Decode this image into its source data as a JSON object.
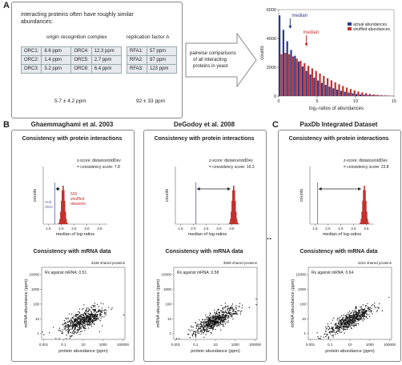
{
  "panel_a": {
    "letter": "A",
    "heading": "interacting proteins often have roughly similar abundances:",
    "orc_title": "origin recognition complex",
    "rfa_title": "replication factor A",
    "orc_rows": [
      {
        "l1": "ORC1:",
        "v1": "8.6 ppm",
        "l2": "ORC4:",
        "v2": "12.3 ppm"
      },
      {
        "l1": "ORC2:",
        "v1": "1.4 ppm",
        "l2": "ORC5:",
        "v2": "2.7 ppm"
      },
      {
        "l1": "ORC3:",
        "v1": "3.2 ppm",
        "l2": "ORC6:",
        "v2": "6.4 ppm"
      }
    ],
    "rfa_rows": [
      {
        "l": "RFA1:",
        "v": "57 ppm"
      },
      {
        "l": "RFA2:",
        "v": "97 ppm"
      },
      {
        "l": "RFA3:",
        "v": "123 ppm"
      }
    ],
    "orc_summary": "5.7 ± 4.2 ppm",
    "rfa_summary": "92 ± 33 ppm",
    "arrow_text": [
      "pairwise comparisons",
      "of all interacting",
      "proteins in yeast"
    ]
  },
  "panel_b_letter": "B",
  "panel_c_letter": "C",
  "ellipsis": "...",
  "colors": {
    "actual": "#2b3a8c",
    "shuffled": "#c0322f",
    "real_line": "#7a7ab8"
  },
  "chart_data": [
    {
      "type": "bar",
      "title": "",
      "legend": [
        "actual abundances",
        "shuffled abundances"
      ],
      "legend_position": "top-right",
      "xlabel": "log₂-ratios of abundances",
      "ylabel": "counts",
      "xlim": [
        0,
        15
      ],
      "ylim": [
        0,
        6000
      ],
      "xticks": [
        0,
        5,
        10,
        15
      ],
      "yticks": [
        0,
        2000,
        4000,
        6000
      ],
      "bin_width": 0.5,
      "series": [
        {
          "name": "actual abundances",
          "values": [
            5600,
            4600,
            3800,
            3200,
            2800,
            2400,
            2050,
            1750,
            1500,
            1280,
            1080,
            920,
            780,
            650,
            540,
            450,
            370,
            300,
            240,
            190,
            150,
            120,
            95,
            75,
            58,
            45,
            35,
            27,
            20,
            15
          ]
        },
        {
          "name": "shuffled abundances",
          "values": [
            2900,
            3000,
            2900,
            2750,
            2600,
            2450,
            2280,
            2100,
            1920,
            1740,
            1570,
            1400,
            1240,
            1090,
            950,
            820,
            700,
            590,
            490,
            400,
            320,
            255,
            200,
            155,
            118,
            88,
            65,
            47,
            33,
            22
          ]
        }
      ],
      "annotations": [
        {
          "text": "median",
          "x": 1.5,
          "series": "actual abundances"
        },
        {
          "text": "median",
          "x": 3.6,
          "series": "shuffled abundances"
        }
      ]
    }
  ],
  "columns": [
    {
      "name": "Ghaemmaghami et al. 2003",
      "consistency_title": "Consistency with protein interactions",
      "zscore_line1": "",
      "zscore_line2": "",
      "score_text": "",
      "real_label": [
        "real",
        "data"
      ],
      "shuffled_label": [
        "500",
        "shuffled",
        "datasets"
      ],
      "hist_xlabel": "median of log-ratios",
      "hist_ylabel": "counts",
      "hist_xticks": [
        "1.5",
        "2.0",
        "2.5",
        "3.0",
        "3.5"
      ],
      "real_value": 1.75,
      "shuffled_center": 2.05,
      "mrna_title": "Consistency with mRNA data",
      "shared": "3348 shared proteins",
      "rs": "Rs against mRNA: 0.51",
      "xlabel": "protein abundance (ppm)",
      "ylabel": "mRNA abundance (ppm)",
      "xticks": [
        "0.001",
        "0.1",
        "10",
        "1000",
        "100000"
      ],
      "yticks": [
        "1",
        "10",
        "100",
        "1000",
        "10000"
      ],
      "rs_value": 0.51,
      "seed": 11
    },
    {
      "name": "DeGodoy et al. 2008",
      "consistency_title": "Consistency with protein interactions",
      "zscore_line1": "z-score: distance/stdDev",
      "zscore_line2": "= consistency score: 16.3",
      "score_text": "",
      "real_label": [
        "",
        ""
      ],
      "shuffled_label": [
        "",
        "",
        ""
      ],
      "hist_xlabel": "median of log-ratios",
      "hist_ylabel": "counts",
      "hist_xticks": [
        "1.5",
        "2.0",
        "2.5",
        "3.0",
        "3.5"
      ],
      "real_value": 2.1,
      "shuffled_center": 3.55,
      "mrna_title": "Consistency with mRNA data",
      "shared": "3508 shared proteins",
      "rs": "Rs against mRNA: 0.58",
      "xlabel": "protein abundance (ppm)",
      "ylabel": "mRNA abundance (ppm)",
      "xticks": [
        "0.001",
        "0.1",
        "10",
        "1000",
        "100000"
      ],
      "yticks": [
        "1",
        "10",
        "100",
        "1000",
        "10000"
      ],
      "rs_value": 0.58,
      "seed": 23
    },
    {
      "name": "PaxDb Integrated Dataset",
      "consistency_title": "Consistency with protein interactions",
      "zscore_line1": "z-score: distance/stdDev",
      "zscore_line2": "= consistency score: 23.8",
      "score_text": "",
      "real_label": [
        "",
        ""
      ],
      "shuffled_label": [
        "",
        "",
        ""
      ],
      "hist_xlabel": "median of log-ratios",
      "hist_ylabel": "counts",
      "hist_xticks": [
        "1.5",
        "2.0",
        "2.5",
        "3.0",
        "3.5"
      ],
      "real_value": 1.6,
      "shuffled_center": 3.4,
      "mrna_title": "Consistency with mRNA data",
      "shared": "4224 shared proteins",
      "rs": "Rs against mRNA: 0.64",
      "xlabel": "protein abundance (ppm)",
      "ylabel": "mRNA abundance (ppm)",
      "xticks": [
        "0.001",
        "0.1",
        "10",
        "1000",
        "100000"
      ],
      "yticks": [
        "1",
        "10",
        "100",
        "1000",
        "10000"
      ],
      "rs_value": 0.64,
      "seed": 37
    }
  ],
  "col1_zscore": [
    "z-score: distance/stdDev",
    "= consistency score: 7.8"
  ]
}
